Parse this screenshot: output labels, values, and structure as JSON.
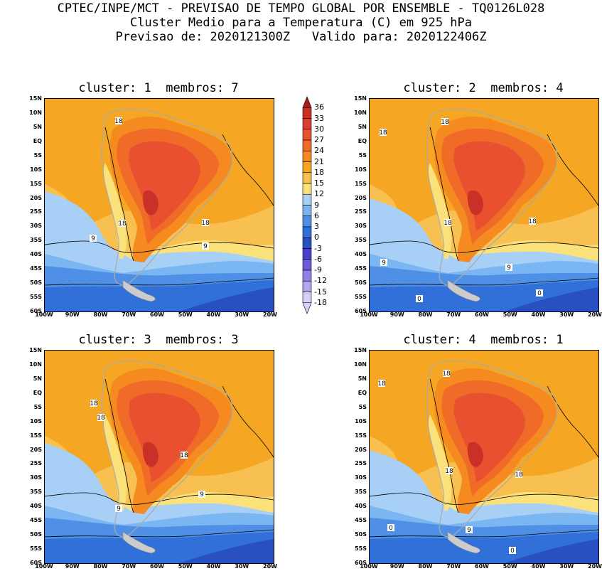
{
  "header": {
    "line1": "CPTEC/INPE/MCT - PREVISAO DE TEMPO GLOBAL POR ENSEMBLE - TQ0126L028",
    "line2": "Cluster Medio para a Temperatura (C) em 925 hPa",
    "line3": "Previsao de: 2020121300Z   Valido para: 2020122406Z"
  },
  "panels": [
    {
      "title": "cluster: 1  membros: 7",
      "labels": [
        {
          "text": "18"
        },
        {
          "text": "18"
        },
        {
          "text": "18"
        },
        {
          "text": "9"
        },
        {
          "text": "9"
        }
      ]
    },
    {
      "title": "cluster: 2  membros: 4",
      "labels": [
        {
          "text": "18"
        },
        {
          "text": "18"
        },
        {
          "text": "18"
        },
        {
          "text": "18"
        },
        {
          "text": "9"
        },
        {
          "text": "9"
        },
        {
          "text": "0"
        },
        {
          "text": "0"
        }
      ]
    },
    {
      "title": "cluster: 3  membros: 3",
      "labels": [
        {
          "text": "18"
        },
        {
          "text": "18"
        },
        {
          "text": "18"
        },
        {
          "text": "9"
        },
        {
          "text": "9"
        }
      ]
    },
    {
      "title": "cluster: 4  membros: 1",
      "labels": [
        {
          "text": "18"
        },
        {
          "text": "18"
        },
        {
          "text": "18"
        },
        {
          "text": "18"
        },
        {
          "text": "9"
        },
        {
          "text": "0"
        },
        {
          "text": "0"
        }
      ]
    }
  ],
  "lat_labels": [
    "15N",
    "10N",
    "5N",
    "EQ",
    "5S",
    "10S",
    "15S",
    "20S",
    "25S",
    "30S",
    "35S",
    "40S",
    "45S",
    "50S",
    "55S",
    "60S"
  ],
  "lon_labels": [
    "100W",
    "90W",
    "80W",
    "70W",
    "60W",
    "50W",
    "40W",
    "30W",
    "20W"
  ],
  "colorbar": {
    "levels": [
      "36",
      "33",
      "30",
      "27",
      "24",
      "21",
      "18",
      "15",
      "12",
      "9",
      "6",
      "3",
      "0",
      "-3",
      "-6",
      "-9",
      "-12",
      "-15",
      "-18"
    ],
    "colors": [
      "#b01818",
      "#c83028",
      "#d84030",
      "#e85030",
      "#f06a28",
      "#f58a20",
      "#f5a623",
      "#f8c050",
      "#fae17a",
      "#a8cff5",
      "#7ab6f2",
      "#4f90e6",
      "#3170d8",
      "#2850c0",
      "#4a40c8",
      "#6a5ad8",
      "#8c82e4",
      "#b0a8ee",
      "#d6d0f8"
    ]
  }
}
